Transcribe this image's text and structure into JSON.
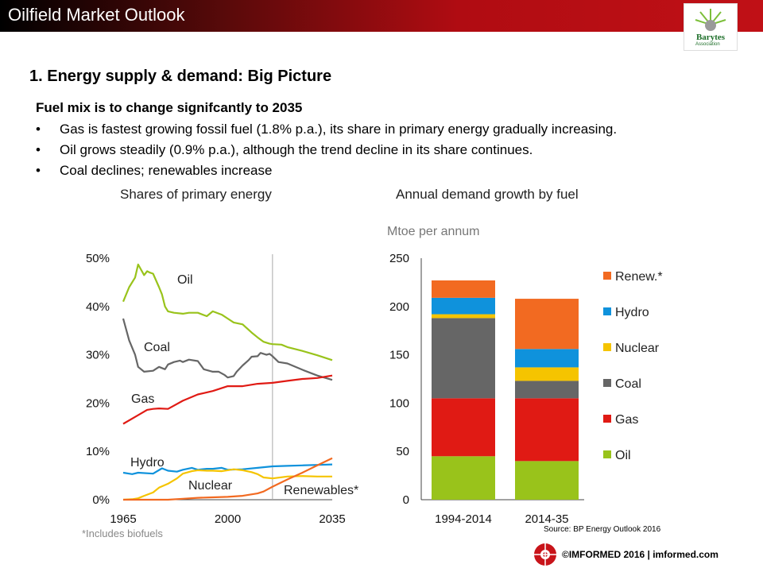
{
  "header": {
    "title": "Oilfield Market Outlook"
  },
  "logo": {
    "name": "Barytes",
    "sub": "Association"
  },
  "section_title": "1. Energy supply & demand: Big Picture",
  "subtitle": "Fuel mix is to change signifcantly to 2035",
  "bullets": [
    "Gas is fastest growing fossil fuel (1.8% p.a.), its share in primary energy gradually increasing.",
    "Oil grows steadily (0.9% p.a.), although the trend decline in its share continues.",
    "Coal declines; renewables increase"
  ],
  "bullet_symbol": "•",
  "chart_data": [
    {
      "type": "line",
      "title": "Shares of primary energy",
      "footnote": "*Includes biofuels",
      "y_ticks": [
        "50%",
        "40%",
        "30%",
        "20%",
        "10%",
        "0%"
      ],
      "x_ticks": [
        "1965",
        "2000",
        "2035"
      ],
      "xlim": [
        1965,
        2035
      ],
      "ylim": [
        0,
        50
      ],
      "projection_start": 2015,
      "series": [
        {
          "name": "Oil",
          "color": "#99c31b",
          "x": [
            1965,
            1967,
            1969,
            1970,
            1972,
            1973,
            1974,
            1975,
            1977,
            1978,
            1979,
            1980,
            1982,
            1985,
            1987,
            1990,
            1993,
            1995,
            1998,
            2000,
            2002,
            2005,
            2008,
            2010,
            2012,
            2014,
            2015,
            2018,
            2020,
            2025,
            2030,
            2035
          ],
          "values": [
            41,
            44,
            46,
            48.7,
            46.5,
            47.3,
            47,
            46.8,
            44,
            42.5,
            40,
            39,
            38.7,
            38.5,
            38.7,
            38.7,
            38,
            39,
            38.3,
            37.5,
            36.7,
            36.3,
            34.6,
            33.6,
            32.7,
            32.3,
            32.2,
            32.1,
            31.6,
            30.8,
            29.9,
            28.9
          ]
        },
        {
          "name": "Coal",
          "color": "#666666",
          "x": [
            1965,
            1967,
            1969,
            1970,
            1972,
            1975,
            1977,
            1979,
            1980,
            1982,
            1984,
            1985,
            1987,
            1990,
            1992,
            1995,
            1997,
            1999,
            2000,
            2002,
            2003,
            2005,
            2007,
            2008,
            2010,
            2011,
            2013,
            2014,
            2015,
            2017,
            2020,
            2025,
            2030,
            2035
          ],
          "values": [
            37.5,
            33,
            30,
            27.5,
            26.5,
            26.7,
            27.5,
            27,
            28,
            28.5,
            28.8,
            28.5,
            29,
            28.7,
            27,
            26.5,
            26.5,
            25.8,
            25.3,
            25.6,
            26.5,
            27.8,
            28.9,
            29.6,
            29.7,
            30.4,
            30.0,
            30.2,
            29.7,
            28.5,
            28.2,
            26.9,
            25.7,
            24.8
          ]
        },
        {
          "name": "Gas",
          "color": "#e01a14",
          "x": [
            1965,
            1970,
            1973,
            1975,
            1977,
            1980,
            1985,
            1990,
            1995,
            2000,
            2005,
            2010,
            2015,
            2020,
            2025,
            2030,
            2035
          ],
          "values": [
            15.7,
            17.5,
            18.6,
            18.8,
            18.9,
            18.8,
            20.5,
            21.8,
            22.5,
            23.5,
            23.5,
            24,
            24.2,
            24.6,
            25,
            25.2,
            25.7
          ]
        },
        {
          "name": "Hydro",
          "color": "#0f92dc",
          "x": [
            1965,
            1968,
            1970,
            1975,
            1978,
            1980,
            1983,
            1985,
            1988,
            1990,
            1993,
            1995,
            1998,
            2000,
            2005,
            2010,
            2015,
            2020,
            2025,
            2030,
            2035
          ],
          "values": [
            5.6,
            5.3,
            5.6,
            5.4,
            6.5,
            6,
            5.8,
            6.2,
            6.6,
            6.2,
            6.4,
            6.4,
            6.6,
            6.2,
            6.3,
            6.6,
            6.9,
            7,
            7.1,
            7.2,
            7.3
          ]
        },
        {
          "name": "Nuclear",
          "color": "#f5c400",
          "x": [
            1965,
            1968,
            1970,
            1972,
            1975,
            1977,
            1980,
            1983,
            1985,
            1988,
            1990,
            1993,
            1995,
            1998,
            2000,
            2002,
            2005,
            2008,
            2010,
            2012,
            2015,
            2020,
            2025,
            2030,
            2035
          ],
          "values": [
            0,
            0.1,
            0.3,
            0.8,
            1.5,
            2.5,
            3.3,
            4.4,
            5.4,
            5.9,
            6.1,
            6,
            6,
            5.9,
            6.1,
            6.3,
            6.1,
            5.7,
            5.3,
            4.6,
            4.4,
            4.8,
            4.9,
            4.8,
            4.8
          ]
        },
        {
          "name": "Renewables*",
          "color": "#f26a21",
          "x": [
            1965,
            1975,
            1980,
            1985,
            1990,
            1995,
            2000,
            2005,
            2010,
            2012,
            2015,
            2020,
            2025,
            2030,
            2035
          ],
          "values": [
            0,
            0,
            0,
            0.2,
            0.4,
            0.5,
            0.6,
            0.8,
            1.3,
            1.7,
            2.7,
            4.2,
            5.6,
            7.1,
            8.6
          ]
        }
      ]
    },
    {
      "type": "bar",
      "stacked": true,
      "title": "Annual demand growth by fuel",
      "ylabel": "Mtoe per annum",
      "categories": [
        "1994-2014",
        "2014-35"
      ],
      "y_ticks": [
        "250",
        "200",
        "150",
        "100",
        "50",
        "0"
      ],
      "ylim": [
        0,
        250
      ],
      "series": [
        {
          "name": "Oil",
          "color": "#99c31b",
          "values": [
            45,
            40
          ]
        },
        {
          "name": "Gas",
          "color": "#e01a14",
          "values": [
            60,
            65
          ]
        },
        {
          "name": "Coal",
          "color": "#666666",
          "values": [
            83,
            18
          ]
        },
        {
          "name": "Nuclear",
          "color": "#f5c400",
          "values": [
            4,
            14
          ]
        },
        {
          "name": "Hydro",
          "color": "#0f92dc",
          "values": [
            17,
            19
          ]
        },
        {
          "name": "Renew.*",
          "color": "#f26a21",
          "values": [
            18,
            52
          ]
        }
      ],
      "legend_order": [
        "Renew.*",
        "Hydro",
        "Nuclear",
        "Coal",
        "Gas",
        "Oil"
      ]
    }
  ],
  "source": "Source: BP Energy Outlook 2016",
  "footer": "©IMFORMED 2016  | imformed.com"
}
